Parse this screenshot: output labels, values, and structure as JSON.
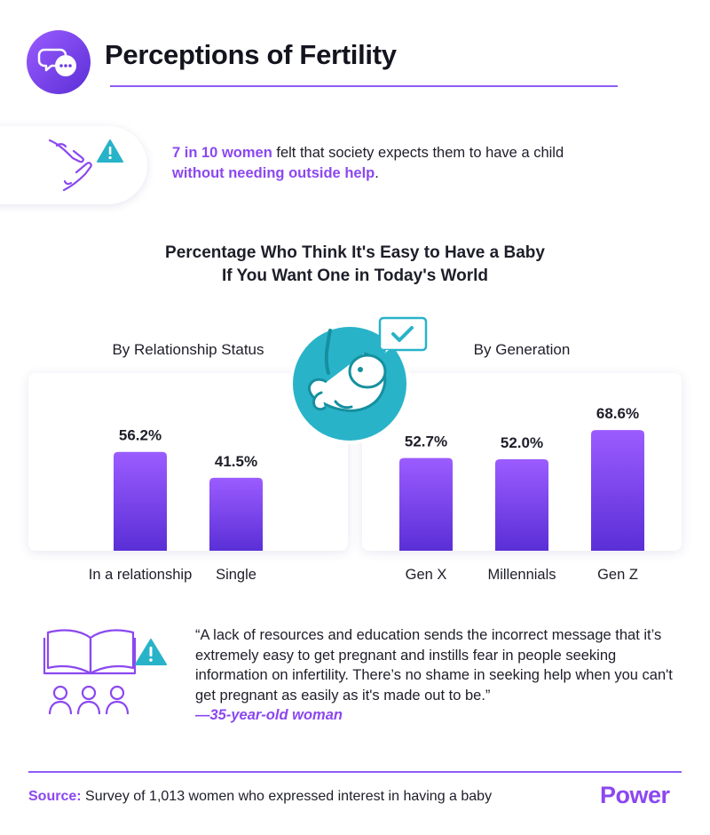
{
  "header": {
    "title": "Perceptions of Fertility",
    "icon": "chat-bubbles-icon"
  },
  "stat": {
    "highlight1": "7 in 10 women",
    "text1": " felt that society expects them to have a child",
    "highlight2": "without needing outside help",
    "text2": ".",
    "icon": "hands-warning-icon"
  },
  "chart_title": {
    "line1": "Percentage Who Think It's Easy to Have a Baby",
    "line2": "If You Want One in Today's World"
  },
  "chart_data": [
    {
      "type": "bar",
      "title": "By Relationship Status",
      "categories": [
        "In a relationship",
        "Single"
      ],
      "values": [
        56.2,
        41.5
      ],
      "labels": [
        "56.2%",
        "41.5%"
      ],
      "ylim": [
        0,
        100
      ],
      "xlabel": "",
      "ylabel": ""
    },
    {
      "type": "bar",
      "title": "By Generation",
      "categories": [
        "Gen X",
        "Millennials",
        "Gen Z"
      ],
      "values": [
        52.7,
        52.0,
        68.6
      ],
      "labels": [
        "52.7%",
        "52.0%",
        "68.6%"
      ],
      "ylim": [
        0,
        100
      ],
      "xlabel": "",
      "ylabel": ""
    }
  ],
  "center_icon": "fetus-checkmark-icon",
  "quote": {
    "text": "“A lack of resources and education sends the incorrect message that it’s extremely easy to get pregnant and instills fear in people seeking information on infertility. There’s no shame in seeking help when you can't get pregnant as easily as it's made out to be.”",
    "attribution": "—35-year-old woman",
    "icon": "book-audience-warning-icon"
  },
  "footer": {
    "source_label": "Source:",
    "source_text": " Survey of 1,013 women who expressed interest in having a baby",
    "logo": "Power"
  },
  "colors": {
    "accent": "#8b48f0",
    "bar_top": "#9b5cff",
    "bar_bottom": "#5a2fd6",
    "teal": "#29b3c9",
    "teal_dark": "#15909f"
  }
}
